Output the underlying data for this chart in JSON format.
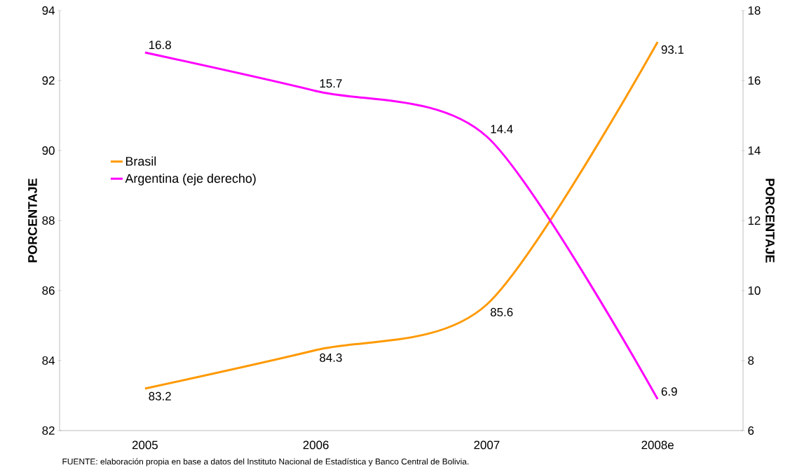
{
  "chart_data": {
    "type": "line",
    "ylabel": "PORCENTAJE",
    "y2label": "PORCENTAJE",
    "categories": [
      "2005",
      "2006",
      "2007",
      "2008e"
    ],
    "series": [
      {
        "name": "Brasil",
        "color": "#ff9900",
        "values": [
          83.2,
          84.3,
          85.6,
          93.1
        ]
      },
      {
        "name": "Argentina (eje derecho)",
        "color": "#ff00ff",
        "values": [
          16.8,
          15.7,
          14.4,
          6.9
        ],
        "axis": "y2"
      }
    ],
    "ylim": [
      82,
      94
    ],
    "yticks": [
      82,
      84,
      86,
      88,
      90,
      92,
      94
    ],
    "y2lim": [
      6,
      18
    ],
    "y2ticks": [
      6,
      8,
      10,
      12,
      14,
      16,
      18
    ],
    "data_labels": true,
    "legend": "left",
    "grid": false,
    "marker": "none",
    "line_style": "solid",
    "annotations": [
      "FUENTE: elaboración propia en base a datos del Instituto Nacional de Estadística y Banco Central de Bolivia."
    ]
  }
}
